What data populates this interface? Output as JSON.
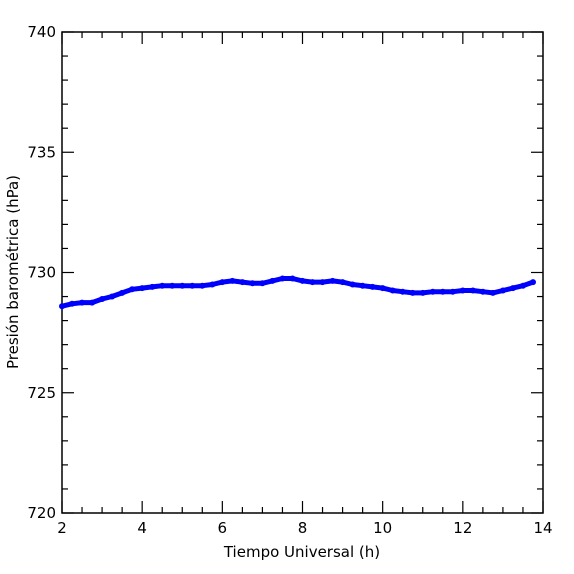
{
  "chart_data": {
    "type": "line",
    "xlabel": "Tiempo Universal (h)",
    "ylabel": "Presión barométrica (hPa)",
    "xlim": [
      2,
      14
    ],
    "ylim": [
      720,
      740
    ],
    "xticks": [
      "2",
      "4",
      "6",
      "8",
      "10",
      "12",
      "14"
    ],
    "yticks": [
      "720",
      "725",
      "730",
      "735",
      "740"
    ],
    "grid": false,
    "colors": {
      "series": "#0000ff",
      "axes": "#000000"
    },
    "series": [
      {
        "x": [
          2.0,
          2.25,
          2.5,
          2.75,
          3.0,
          3.25,
          3.5,
          3.75,
          4.0,
          4.25,
          4.5,
          4.75,
          5.0,
          5.25,
          5.5,
          5.75,
          6.0,
          6.25,
          6.5,
          6.75,
          7.0,
          7.25,
          7.5,
          7.75,
          8.0,
          8.25,
          8.5,
          8.75,
          9.0,
          9.25,
          9.5,
          9.75,
          10.0,
          10.25,
          10.5,
          10.75,
          11.0,
          11.25,
          11.5,
          11.75,
          12.0,
          12.25,
          12.5,
          12.75,
          13.0,
          13.25,
          13.5,
          13.75
        ],
        "y": [
          728.6,
          728.7,
          728.75,
          728.75,
          728.9,
          729.0,
          729.15,
          729.3,
          729.35,
          729.4,
          729.45,
          729.45,
          729.45,
          729.45,
          729.45,
          729.5,
          729.6,
          729.65,
          729.6,
          729.55,
          729.55,
          729.65,
          729.75,
          729.75,
          729.65,
          729.6,
          729.6,
          729.65,
          729.6,
          729.5,
          729.45,
          729.4,
          729.35,
          729.25,
          729.2,
          729.15,
          729.15,
          729.2,
          729.2,
          729.2,
          729.25,
          729.25,
          729.2,
          729.15,
          729.25,
          729.35,
          729.45,
          729.6
        ]
      }
    ]
  }
}
